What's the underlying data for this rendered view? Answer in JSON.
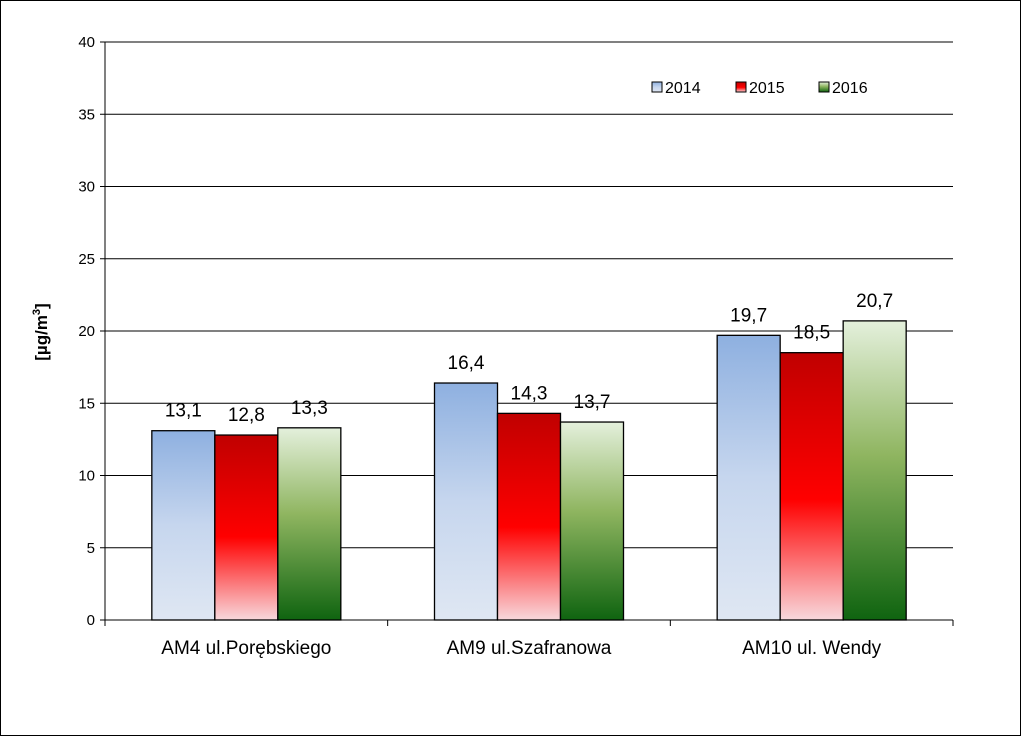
{
  "chart_data": {
    "type": "bar",
    "title": "",
    "xlabel": "",
    "ylabel": "[µg/m",
    "ylabel_sup": "3",
    "ylabel_close": "]",
    "ylim": [
      0,
      40
    ],
    "yticks": [
      0,
      5,
      10,
      15,
      20,
      25,
      30,
      35,
      40
    ],
    "grid": true,
    "legend_position": "top-right",
    "categories": [
      "AM4 ul.Porębskiego",
      "AM9 ul.Szafranowa",
      "AM10 ul. Wendy"
    ],
    "series": [
      {
        "name": "2014",
        "values": [
          13.1,
          16.4,
          19.7
        ],
        "labels": [
          "13,1",
          "16,4",
          "19,7"
        ],
        "color_top": "#8eb0e0",
        "color_bottom": "#dfe7f3"
      },
      {
        "name": "2015",
        "values": [
          12.8,
          14.3,
          18.5
        ],
        "labels": [
          "12,8",
          "14,3",
          "18,5"
        ],
        "color_top": "#c00000",
        "color_bottom": "#f8d8dc"
      },
      {
        "name": "2016",
        "values": [
          13.3,
          13.7,
          20.7
        ],
        "labels": [
          "13,3",
          "13,7",
          "20,7"
        ],
        "color_top": "#e4f0dc",
        "color_bottom": "#0f6410"
      }
    ]
  }
}
